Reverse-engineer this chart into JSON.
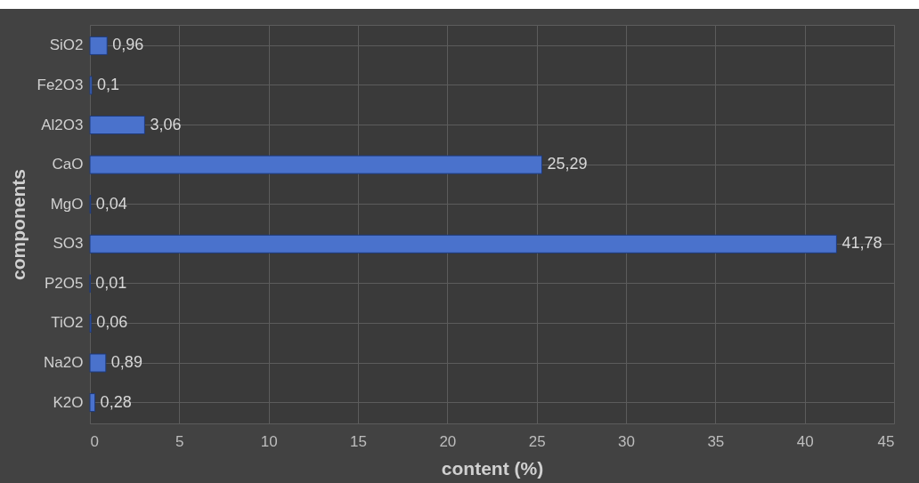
{
  "chart_data": {
    "type": "bar",
    "orientation": "horizontal",
    "xlabel": "content (%)",
    "ylabel": "components",
    "categories": [
      "SiO2",
      "Fe2O3",
      "Al2O3",
      "CaO",
      "MgO",
      "SO3",
      "P2O5",
      "TiO2",
      "Na2O",
      "K2O"
    ],
    "values": [
      0.96,
      0.1,
      3.06,
      25.29,
      0.04,
      41.78,
      0.01,
      0.06,
      0.89,
      0.28
    ],
    "value_labels": [
      "0,96",
      "0,1",
      "3,06",
      "25,29",
      "0,04",
      "41,78",
      "0,01",
      "0,06",
      "0,89",
      "0,28"
    ],
    "color": "#4a72cc",
    "xlim": [
      0,
      45
    ],
    "xticks": [
      0,
      5,
      10,
      15,
      20,
      25,
      30,
      35,
      40,
      45
    ],
    "grid": true
  }
}
